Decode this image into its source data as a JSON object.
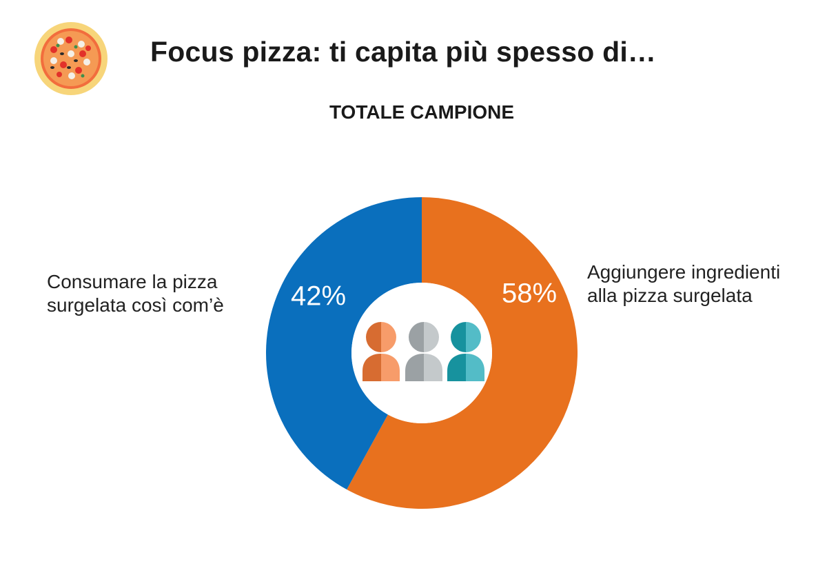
{
  "header": {
    "logo_icon": "pizza-icon",
    "title": "Focus pizza: ti capita più spesso di…",
    "subtitle": "TOTALE CAMPIONE"
  },
  "chart_data": {
    "type": "pie",
    "variant": "donut",
    "slices": [
      {
        "label_lines": [
          "Aggiungere ingredienti",
          "alla pizza surgelata"
        ],
        "value": 58,
        "value_label": "58%",
        "color": "#e8711e"
      },
      {
        "label_lines": [
          "Consumare la pizza",
          "surgelata così com’è"
        ],
        "value": 42,
        "value_label": "42%",
        "color": "#0a6fbd"
      }
    ],
    "center_icon": "people-group-icon",
    "people_colors": [
      "#f47b38",
      "#b0b7ba",
      "#1aa6b4"
    ]
  }
}
